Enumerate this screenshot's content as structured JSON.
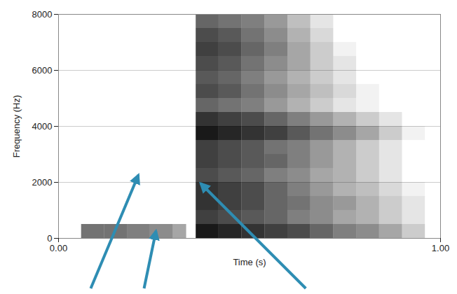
{
  "chart_data": {
    "type": "spectrogram",
    "xlabel": "Time (s)",
    "ylabel": "Frequency (Hz)",
    "xlim": [
      0,
      1
    ],
    "xticks": [
      {
        "value": 0,
        "label": "0.00"
      },
      {
        "value": 1,
        "label": "1.00"
      }
    ],
    "ylim": [
      0,
      8000
    ],
    "yticks": [
      0,
      2000,
      4000,
      6000,
      8000
    ],
    "grid": true,
    "color": "#000000",
    "zlim": [
      0,
      1
    ],
    "time_edges": [
      0.06,
      0.12,
      0.18,
      0.24,
      0.3,
      0.335,
      0.36,
      0.42,
      0.48,
      0.54,
      0.6,
      0.66,
      0.72,
      0.78,
      0.84,
      0.9,
      0.96
    ],
    "frequency_edges": [
      0,
      500,
      1000,
      1500,
      2000,
      2500,
      3000,
      3500,
      4000,
      4500,
      5000,
      5500,
      6000,
      6500,
      7000,
      7500,
      8000
    ],
    "intensity": [
      [
        0.55,
        0.55,
        0.5,
        0.45,
        0.35,
        0,
        0.9,
        0.85,
        0.8,
        0.75,
        0.7,
        0.6,
        0.5,
        0.45,
        0.35,
        0.2
      ],
      [
        0,
        0,
        0,
        0,
        0,
        0,
        0.75,
        0.7,
        0.65,
        0.6,
        0.5,
        0.45,
        0.35,
        0.3,
        0.2,
        0.1
      ],
      [
        0,
        0,
        0,
        0,
        0,
        0,
        0.8,
        0.75,
        0.7,
        0.6,
        0.55,
        0.45,
        0.4,
        0.3,
        0.2,
        0.1
      ],
      [
        0,
        0,
        0,
        0,
        0,
        0,
        0.8,
        0.75,
        0.7,
        0.6,
        0.5,
        0.4,
        0.3,
        0.25,
        0.15,
        0.05
      ],
      [
        0,
        0,
        0,
        0,
        0,
        0,
        0.7,
        0.65,
        0.6,
        0.5,
        0.45,
        0.35,
        0.3,
        0.2,
        0.1,
        0
      ],
      [
        0,
        0,
        0,
        0,
        0,
        0,
        0.75,
        0.7,
        0.65,
        0.6,
        0.5,
        0.4,
        0.3,
        0.2,
        0.1,
        0
      ],
      [
        0,
        0,
        0,
        0,
        0,
        0,
        0.75,
        0.7,
        0.65,
        0.55,
        0.5,
        0.4,
        0.3,
        0.2,
        0.1,
        0
      ],
      [
        0,
        0,
        0,
        0,
        0,
        0,
        0.9,
        0.85,
        0.8,
        0.75,
        0.65,
        0.55,
        0.45,
        0.35,
        0.2,
        0.05
      ],
      [
        0,
        0,
        0,
        0,
        0,
        0,
        0.8,
        0.75,
        0.7,
        0.6,
        0.5,
        0.4,
        0.3,
        0.2,
        0.1,
        0
      ],
      [
        0,
        0,
        0,
        0,
        0,
        0,
        0.6,
        0.55,
        0.5,
        0.4,
        0.3,
        0.2,
        0.1,
        0.05,
        0,
        0
      ],
      [
        0,
        0,
        0,
        0,
        0,
        0,
        0.7,
        0.65,
        0.55,
        0.45,
        0.35,
        0.25,
        0.15,
        0.05,
        0,
        0
      ],
      [
        0,
        0,
        0,
        0,
        0,
        0,
        0.65,
        0.6,
        0.5,
        0.4,
        0.3,
        0.2,
        0.1,
        0,
        0,
        0
      ],
      [
        0,
        0,
        0,
        0,
        0,
        0,
        0.7,
        0.65,
        0.55,
        0.45,
        0.35,
        0.2,
        0.1,
        0,
        0,
        0
      ],
      [
        0,
        0,
        0,
        0,
        0,
        0,
        0.75,
        0.7,
        0.6,
        0.5,
        0.35,
        0.2,
        0.05,
        0,
        0,
        0
      ],
      [
        0,
        0,
        0,
        0,
        0,
        0,
        0.7,
        0.65,
        0.55,
        0.45,
        0.3,
        0.15,
        0,
        0,
        0,
        0
      ],
      [
        0,
        0,
        0,
        0,
        0,
        0,
        0.6,
        0.55,
        0.5,
        0.4,
        0.25,
        0.1,
        0,
        0,
        0,
        0
      ]
    ],
    "annotations": [
      {
        "x": 0.21,
        "y": 2250
      },
      {
        "x": 0.256,
        "y": 250
      },
      {
        "x": 0.373,
        "y": 1950
      }
    ]
  }
}
